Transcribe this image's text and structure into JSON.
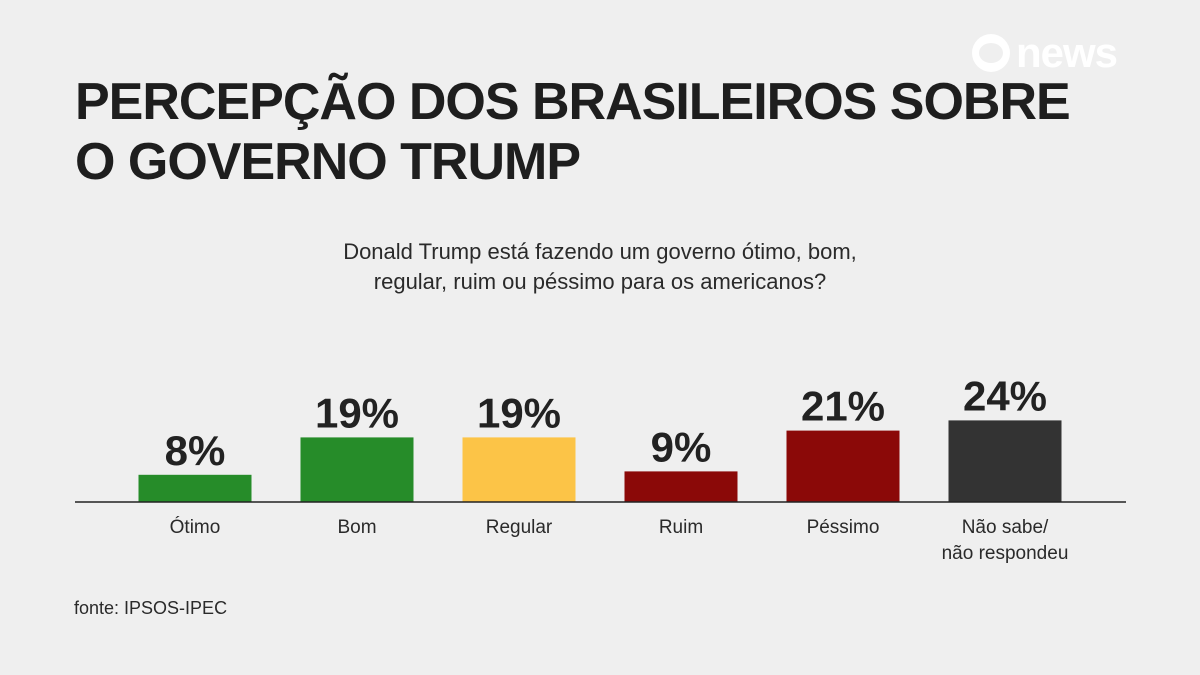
{
  "brand": {
    "logo_text": "news"
  },
  "header": {
    "title_lines": [
      "PERCEPÇÃO DOS BRASILEIROS SOBRE",
      "O GOVERNO TRUMP"
    ],
    "question_lines": [
      "Donald Trump está fazendo um governo ótimo, bom,",
      "regular, ruim ou péssimo para os americanos?"
    ]
  },
  "footer": {
    "source": "fonte: IPSOS-IPEC"
  },
  "colors": {
    "background": "#efefef",
    "green": "#268c29",
    "yellow": "#fcc447",
    "dark_red": "#8b0908",
    "dark_gray": "#333333"
  },
  "chart_data": {
    "type": "bar",
    "categories": [
      [
        "Ótimo"
      ],
      [
        "Bom"
      ],
      [
        "Regular"
      ],
      [
        "Ruim"
      ],
      [
        "Péssimo"
      ],
      [
        "Não sabe/",
        "não respondeu"
      ]
    ],
    "values": [
      8,
      19,
      19,
      9,
      21,
      24
    ],
    "data_labels": [
      "8%",
      "19%",
      "19%",
      "9%",
      "21%",
      "24%"
    ],
    "bar_colors": [
      "#268c29",
      "#268c29",
      "#fcc447",
      "#8b0908",
      "#8b0908",
      "#333333"
    ],
    "unit": "%",
    "ylim": [
      0,
      24
    ],
    "grid": false,
    "legend": "none"
  }
}
